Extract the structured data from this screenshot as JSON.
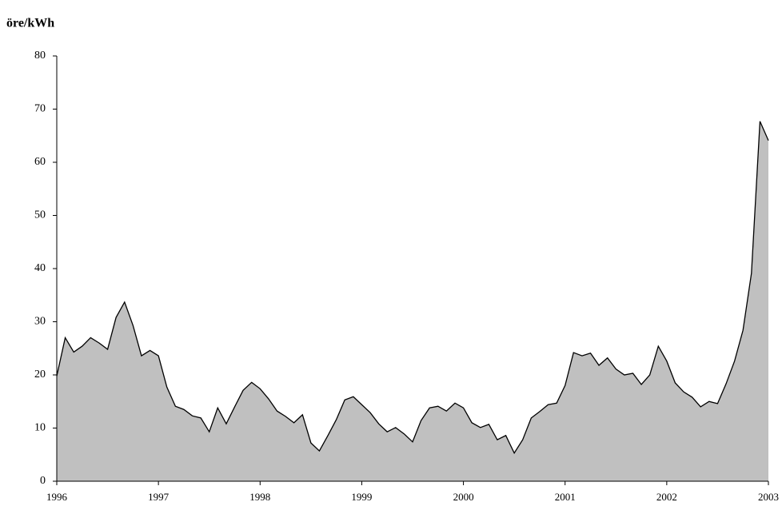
{
  "chart_data": {
    "type": "area",
    "y_label": "öre/kWh",
    "x": [
      1996,
      1996.083,
      1996.167,
      1996.25,
      1996.333,
      1996.417,
      1996.5,
      1996.583,
      1996.667,
      1996.75,
      1996.833,
      1996.917,
      1997,
      1997.083,
      1997.167,
      1997.25,
      1997.333,
      1997.417,
      1997.5,
      1997.583,
      1997.667,
      1997.75,
      1997.833,
      1997.917,
      1998,
      1998.083,
      1998.167,
      1998.25,
      1998.333,
      1998.417,
      1998.5,
      1998.583,
      1998.667,
      1998.75,
      1998.833,
      1998.917,
      1999,
      1999.083,
      1999.167,
      1999.25,
      1999.333,
      1999.417,
      1999.5,
      1999.583,
      1999.667,
      1999.75,
      1999.833,
      1999.917,
      2000,
      2000.083,
      2000.167,
      2000.25,
      2000.333,
      2000.417,
      2000.5,
      2000.583,
      2000.667,
      2000.75,
      2000.833,
      2000.917,
      2001,
      2001.083,
      2001.167,
      2001.25,
      2001.333,
      2001.417,
      2001.5,
      2001.583,
      2001.667,
      2001.75,
      2001.833,
      2001.917,
      2002,
      2002.083,
      2002.167,
      2002.25,
      2002.333,
      2002.417,
      2002.5,
      2002.583,
      2002.667,
      2002.75,
      2002.833,
      2002.917,
      2003
    ],
    "values": [
      19.8,
      27,
      24.3,
      25.4,
      27,
      26,
      24.8,
      30.8,
      33.7,
      29.3,
      23.6,
      24.6,
      23.6,
      17.7,
      14.1,
      13.5,
      12.3,
      11.9,
      9.3,
      13.8,
      10.8,
      14,
      17.1,
      18.6,
      17.4,
      15.5,
      13.2,
      12.2,
      11,
      12.5,
      7.2,
      5.7,
      8.6,
      11.6,
      15.3,
      15.9,
      14.4,
      12.9,
      10.8,
      9.3,
      10.1,
      8.9,
      7.4,
      11.4,
      13.8,
      14.1,
      13.2,
      14.7,
      13.8,
      11,
      10.1,
      10.7,
      7.8,
      8.6,
      5.3,
      7.8,
      11.9,
      13.1,
      14.4,
      14.7,
      18,
      24.2,
      23.6,
      24.1,
      21.8,
      23.2,
      21.1,
      20,
      20.3,
      18.2,
      20,
      25.4,
      22.6,
      18.5,
      16.8,
      15.8,
      14,
      15,
      14.6,
      18.3,
      22.6,
      28.4,
      39.1,
      67.7,
      64.1
    ],
    "color": "#c0c0c0",
    "line_color": "#000000",
    "xlim": [
      1996,
      2003
    ],
    "xticks": [
      1996,
      1997,
      1998,
      1999,
      2000,
      2001,
      2002,
      2003
    ],
    "ylim": [
      0,
      80
    ],
    "yticks": [
      0,
      10,
      20,
      30,
      40,
      50,
      60,
      70,
      80
    ]
  }
}
